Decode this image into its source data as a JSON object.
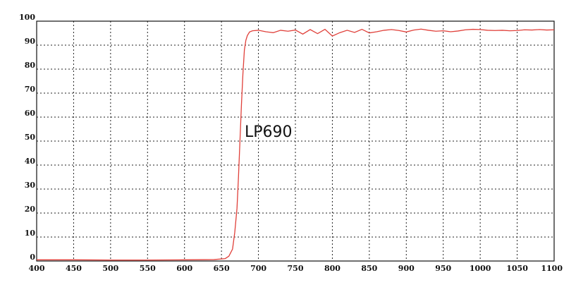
{
  "chart_data": {
    "type": "line",
    "title": "",
    "xlabel": "",
    "ylabel": "",
    "xlim": [
      400,
      1100
    ],
    "ylim": [
      0,
      100
    ],
    "x_ticks": [
      400,
      450,
      500,
      550,
      600,
      650,
      700,
      750,
      800,
      850,
      900,
      950,
      1000,
      1050,
      1100
    ],
    "y_ticks": [
      0,
      10,
      20,
      30,
      40,
      50,
      60,
      70,
      80,
      90,
      100
    ],
    "grid": true,
    "line_color": "#e0403a",
    "annotation": "LP690",
    "series": [
      {
        "x": [
          400,
          450,
          500,
          550,
          600,
          640,
          655,
          660,
          665,
          668,
          671,
          673,
          675,
          677,
          679,
          681,
          683,
          685,
          688,
          692,
          700,
          710,
          720,
          730,
          740,
          750,
          760,
          770,
          780,
          790,
          800,
          810,
          820,
          830,
          840,
          850,
          860,
          870,
          880,
          890,
          900,
          910,
          920,
          930,
          940,
          950,
          960,
          970,
          980,
          990,
          1000,
          1010,
          1020,
          1030,
          1040,
          1050,
          1060,
          1070,
          1080,
          1090,
          1100
        ],
        "y": [
          0.5,
          0.5,
          0.4,
          0.4,
          0.5,
          0.6,
          1,
          2,
          5,
          12,
          22,
          35,
          50,
          65,
          78,
          88,
          92,
          94,
          95.5,
          96,
          96.2,
          95.6,
          95.2,
          96.2,
          95.8,
          96.3,
          94.6,
          96.5,
          94.8,
          96.6,
          93.8,
          95.2,
          96.2,
          95.3,
          96.6,
          95.1,
          95.6,
          96.2,
          96.5,
          96.1,
          95.5,
          96.3,
          96.7,
          96.2,
          95.8,
          96.0,
          95.6,
          95.9,
          96.4,
          96.6,
          96.5,
          96.2,
          96.1,
          96.2,
          96.0,
          96.1,
          96.4,
          96.3,
          96.5,
          96.3,
          96.4
        ]
      }
    ]
  }
}
